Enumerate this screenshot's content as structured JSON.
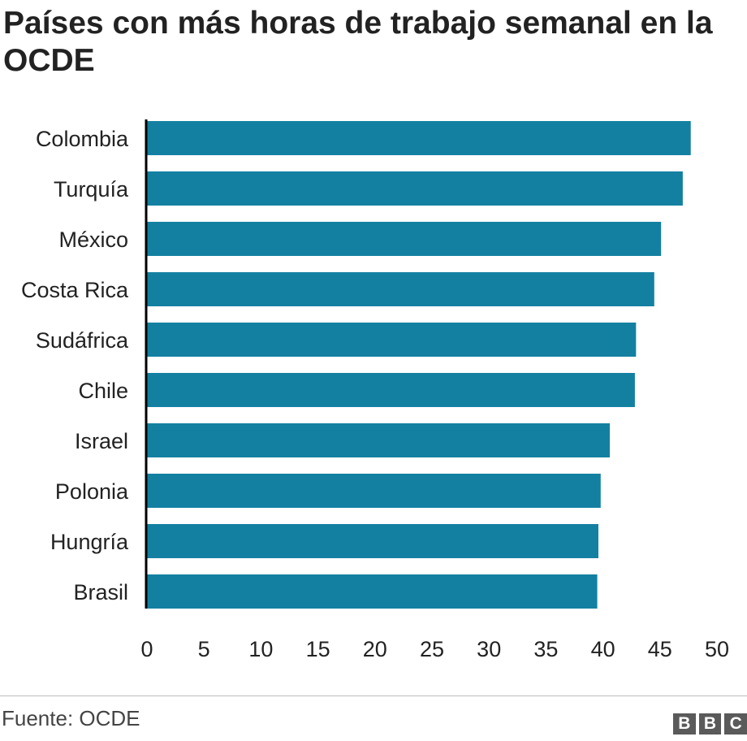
{
  "header": {
    "title": "Países con más horas de trabajo semanal en la OCDE"
  },
  "footer": {
    "source": "Fuente: OCDE",
    "logo": [
      "B",
      "B",
      "C"
    ]
  },
  "colors": {
    "bar": "#1380A1",
    "axis": "#000000",
    "text": "#222222"
  },
  "chart_data": {
    "type": "bar",
    "orientation": "horizontal",
    "title": "Países con más horas de trabajo semanal en la OCDE",
    "xlabel": "",
    "ylabel": "",
    "categories": [
      "Colombia",
      "Turquía",
      "México",
      "Costa Rica",
      "Sudáfrica",
      "Chile",
      "Israel",
      "Polonia",
      "Hungría",
      "Brasil"
    ],
    "values": [
      47.7,
      47.0,
      45.1,
      44.5,
      42.9,
      42.8,
      40.6,
      39.8,
      39.6,
      39.5
    ],
    "xlim": [
      0,
      50
    ],
    "xticks": [
      "0",
      "5",
      "10",
      "15",
      "20",
      "25",
      "30",
      "35",
      "40",
      "45",
      "50"
    ],
    "grid": false,
    "legend": "none"
  }
}
